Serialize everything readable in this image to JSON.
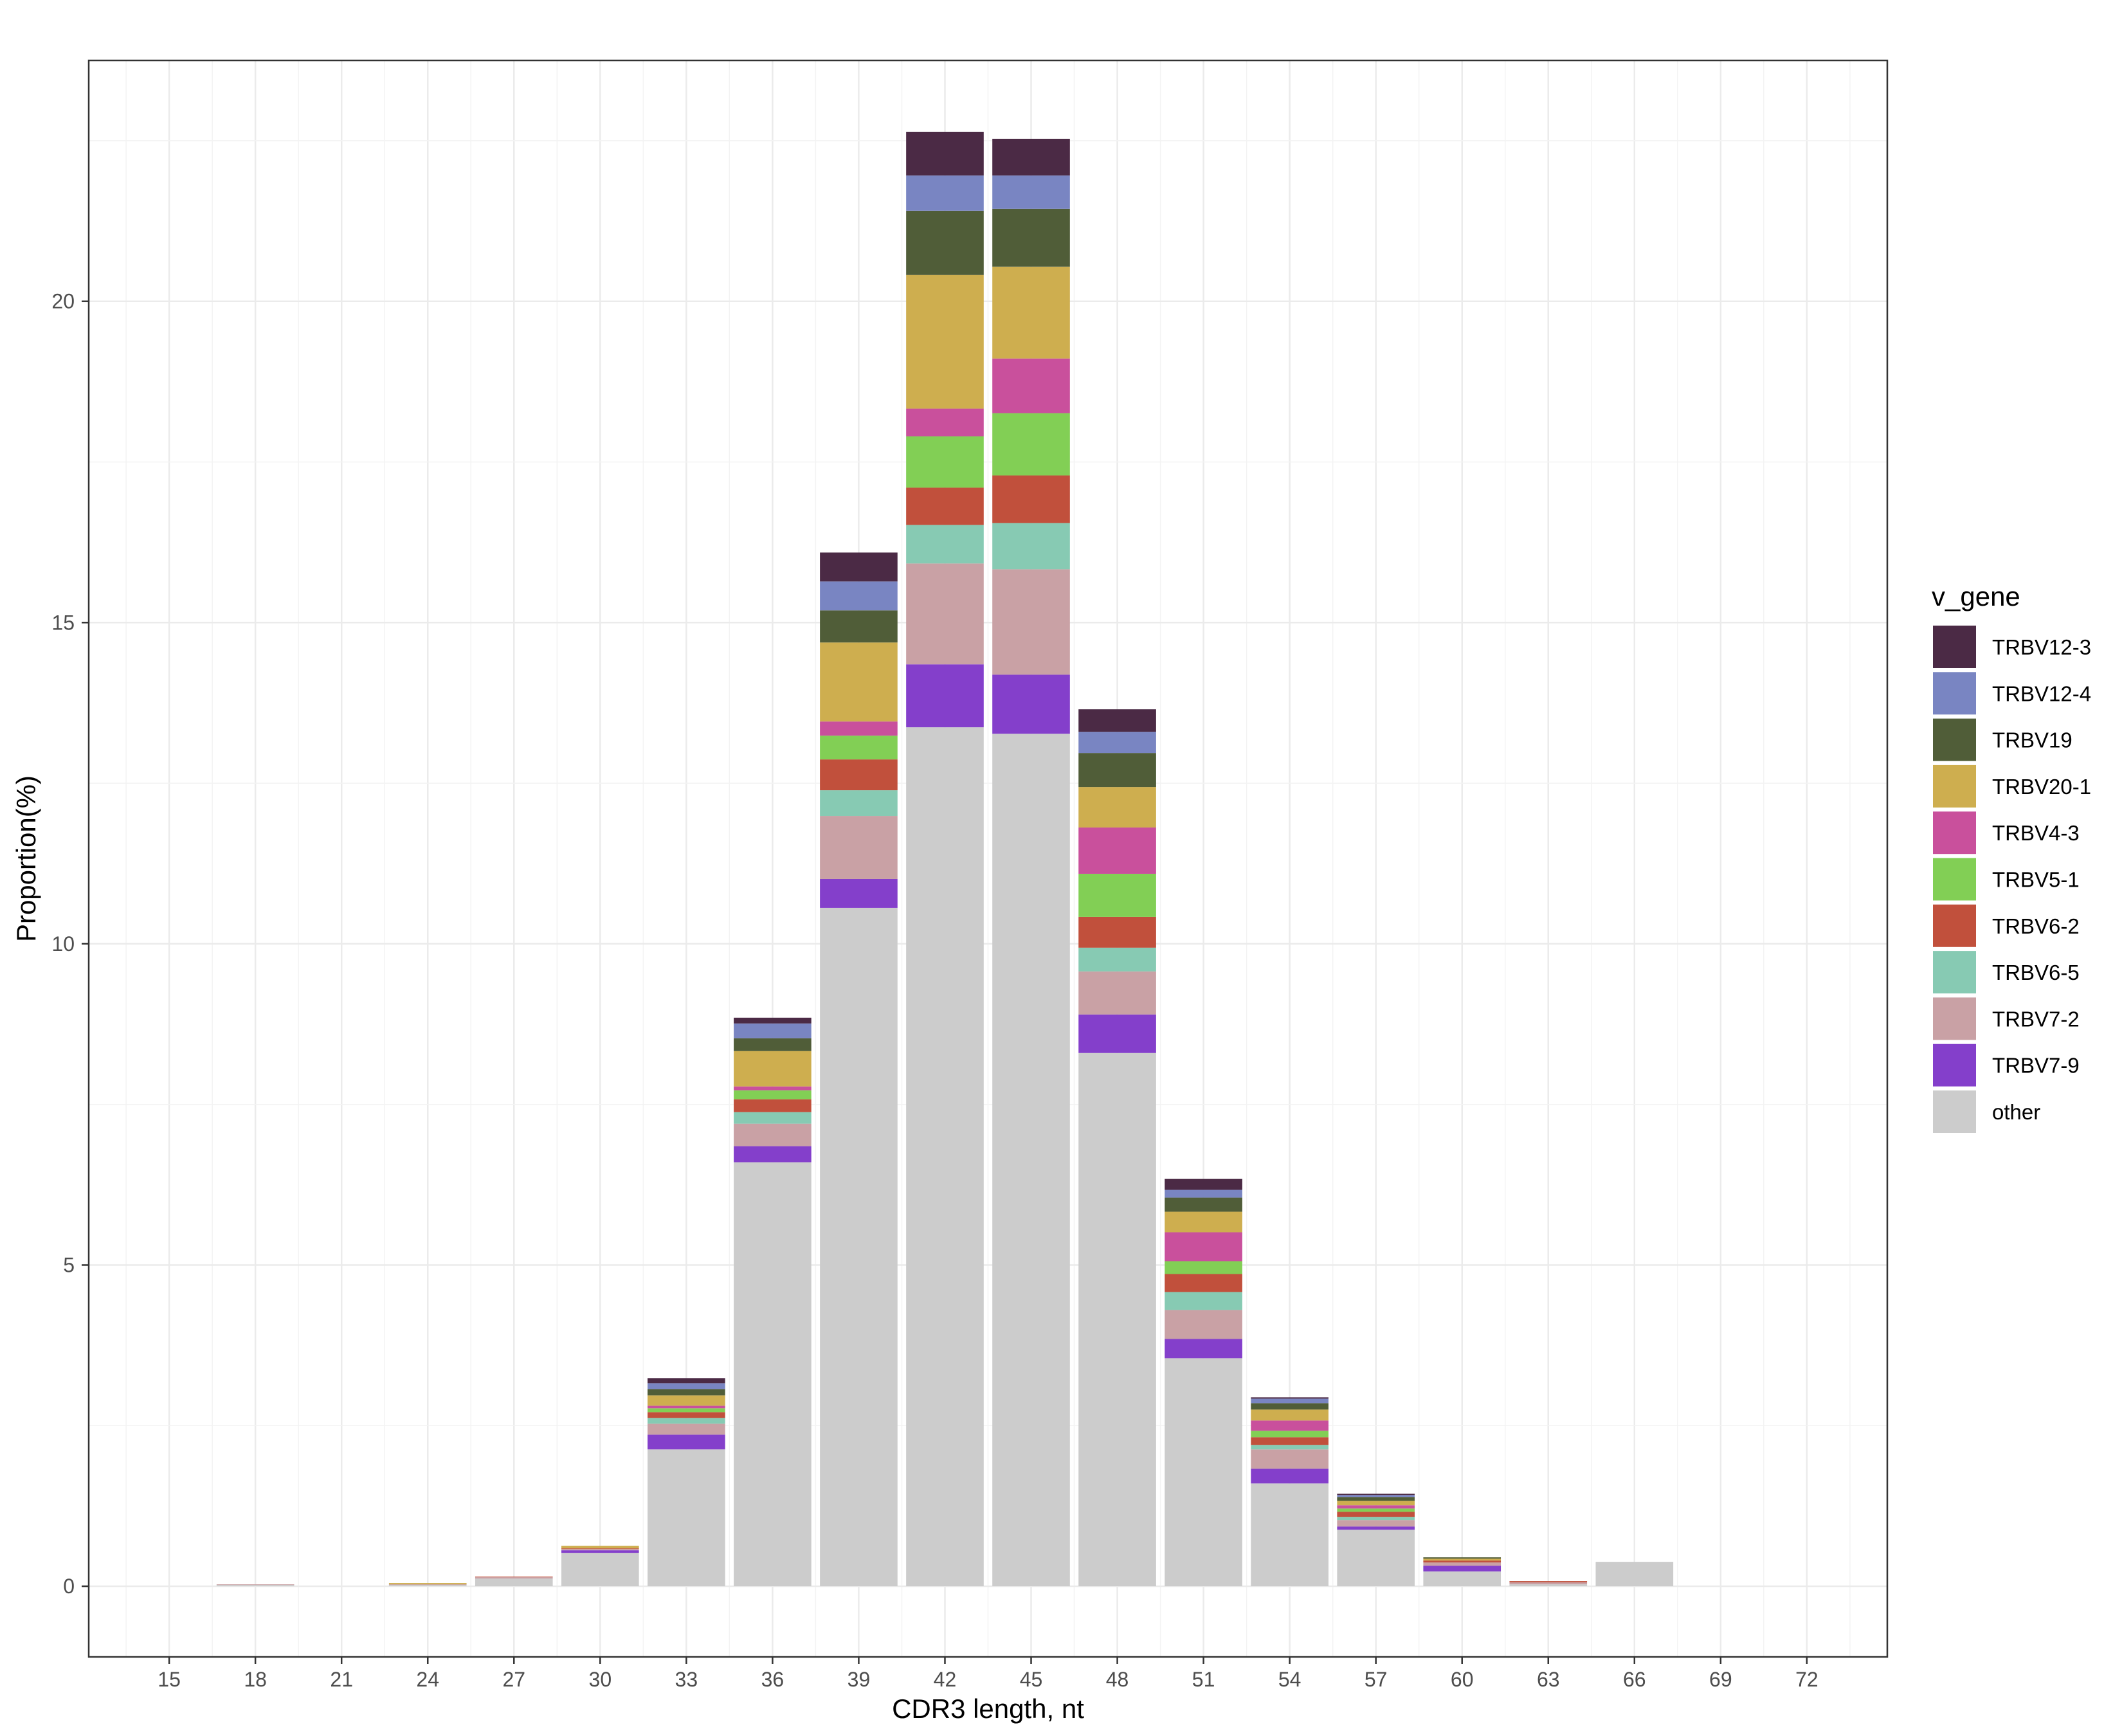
{
  "chart_data": {
    "type": "bar",
    "stacked": true,
    "title": "",
    "xlabel": "CDR3 length, nt",
    "ylabel": "Proportion(%)",
    "ylim": [
      -1.1,
      23.75
    ],
    "y_ticks": [
      0,
      5,
      10,
      15,
      20
    ],
    "x_ticks": [
      15,
      18,
      21,
      24,
      27,
      30,
      33,
      36,
      39,
      42,
      45,
      48,
      51,
      54,
      57,
      60,
      63,
      66,
      69,
      72
    ],
    "xlim": [
      12.2,
      74.8
    ],
    "grid": true,
    "legend_position": "right",
    "legend_title": "v_gene",
    "stack_order": [
      "other",
      "TRBV7-9",
      "TRBV7-2",
      "TRBV6-5",
      "TRBV6-2",
      "TRBV5-1",
      "TRBV4-3",
      "TRBV20-1",
      "TRBV19",
      "TRBV12-4",
      "TRBV12-3"
    ],
    "legend_order": [
      "TRBV12-3",
      "TRBV12-4",
      "TRBV19",
      "TRBV20-1",
      "TRBV4-3",
      "TRBV5-1",
      "TRBV6-2",
      "TRBV6-5",
      "TRBV7-2",
      "TRBV7-9",
      "other"
    ],
    "colors": {
      "TRBV12-3": "#4b2a45",
      "TRBV12-4": "#7985c2",
      "TRBV19": "#505d38",
      "TRBV20-1": "#ceae4f",
      "TRBV4-3": "#c9509c",
      "TRBV5-1": "#82cf55",
      "TRBV6-2": "#c1503c",
      "TRBV6-5": "#87cab3",
      "TRBV7-2": "#c9a1a5",
      "TRBV7-9": "#843fcb",
      "other": "#cccccc"
    },
    "bars": [
      {
        "x": 18,
        "segments": [
          [
            "other",
            0.02
          ],
          [
            "TRBV7-2",
            0.01
          ]
        ]
      },
      {
        "x": 24,
        "segments": [
          [
            "other",
            0.02
          ],
          [
            "TRBV20-1",
            0.02
          ],
          [
            "TRBV7-2",
            0.01
          ]
        ]
      },
      {
        "x": 27,
        "segments": [
          [
            "other",
            0.12
          ],
          [
            "TRBV7-2",
            0.02
          ],
          [
            "TRBV6-2",
            0.01
          ]
        ]
      },
      {
        "x": 30,
        "segments": [
          [
            "other",
            0.52
          ],
          [
            "TRBV7-9",
            0.04
          ],
          [
            "TRBV7-2",
            0.02
          ],
          [
            "TRBV6-2",
            0.01
          ],
          [
            "TRBV20-1",
            0.04
          ]
        ]
      },
      {
        "x": 33,
        "segments": [
          [
            "other",
            2.13
          ],
          [
            "TRBV7-9",
            0.23
          ],
          [
            "TRBV7-2",
            0.17
          ],
          [
            "TRBV6-5",
            0.09
          ],
          [
            "TRBV6-2",
            0.09
          ],
          [
            "TRBV5-1",
            0.06
          ],
          [
            "TRBV4-3",
            0.04
          ],
          [
            "TRBV20-1",
            0.16
          ],
          [
            "TRBV19",
            0.1
          ],
          [
            "TRBV12-4",
            0.09
          ],
          [
            "TRBV12-3",
            0.08
          ]
        ]
      },
      {
        "x": 36,
        "segments": [
          [
            "other",
            6.6
          ],
          [
            "TRBV7-9",
            0.25
          ],
          [
            "TRBV7-2",
            0.35
          ],
          [
            "TRBV6-5",
            0.18
          ],
          [
            "TRBV6-2",
            0.2
          ],
          [
            "TRBV5-1",
            0.14
          ],
          [
            "TRBV4-3",
            0.06
          ],
          [
            "TRBV20-1",
            0.55
          ],
          [
            "TRBV19",
            0.2
          ],
          [
            "TRBV12-4",
            0.23
          ],
          [
            "TRBV12-3",
            0.09
          ]
        ]
      },
      {
        "x": 39,
        "segments": [
          [
            "other",
            10.56
          ],
          [
            "TRBV7-9",
            0.45
          ],
          [
            "TRBV7-2",
            0.98
          ],
          [
            "TRBV6-5",
            0.4
          ],
          [
            "TRBV6-2",
            0.48
          ],
          [
            "TRBV5-1",
            0.37
          ],
          [
            "TRBV4-3",
            0.22
          ],
          [
            "TRBV20-1",
            1.23
          ],
          [
            "TRBV19",
            0.5
          ],
          [
            "TRBV12-4",
            0.45
          ],
          [
            "TRBV12-3",
            0.45
          ]
        ]
      },
      {
        "x": 42,
        "segments": [
          [
            "other",
            13.37
          ],
          [
            "TRBV7-9",
            0.98
          ],
          [
            "TRBV7-2",
            1.57
          ],
          [
            "TRBV6-5",
            0.6
          ],
          [
            "TRBV6-2",
            0.58
          ],
          [
            "TRBV5-1",
            0.8
          ],
          [
            "TRBV4-3",
            0.43
          ],
          [
            "TRBV20-1",
            2.08
          ],
          [
            "TRBV19",
            1.0
          ],
          [
            "TRBV12-4",
            0.55
          ],
          [
            "TRBV12-3",
            0.68
          ]
        ]
      },
      {
        "x": 45,
        "segments": [
          [
            "other",
            13.27
          ],
          [
            "TRBV7-9",
            0.92
          ],
          [
            "TRBV7-2",
            1.64
          ],
          [
            "TRBV6-5",
            0.72
          ],
          [
            "TRBV6-2",
            0.74
          ],
          [
            "TRBV5-1",
            0.97
          ],
          [
            "TRBV4-3",
            0.85
          ],
          [
            "TRBV20-1",
            1.43
          ],
          [
            "TRBV19",
            0.9
          ],
          [
            "TRBV12-4",
            0.52
          ],
          [
            "TRBV12-3",
            0.57
          ]
        ]
      },
      {
        "x": 48,
        "segments": [
          [
            "other",
            8.3
          ],
          [
            "TRBV7-9",
            0.6
          ],
          [
            "TRBV7-2",
            0.67
          ],
          [
            "TRBV6-5",
            0.37
          ],
          [
            "TRBV6-2",
            0.48
          ],
          [
            "TRBV5-1",
            0.67
          ],
          [
            "TRBV4-3",
            0.72
          ],
          [
            "TRBV20-1",
            0.63
          ],
          [
            "TRBV19",
            0.53
          ],
          [
            "TRBV12-4",
            0.33
          ],
          [
            "TRBV12-3",
            0.35
          ]
        ]
      },
      {
        "x": 51,
        "segments": [
          [
            "other",
            3.55
          ],
          [
            "TRBV7-9",
            0.3
          ],
          [
            "TRBV7-2",
            0.45
          ],
          [
            "TRBV6-5",
            0.28
          ],
          [
            "TRBV6-2",
            0.28
          ],
          [
            "TRBV5-1",
            0.2
          ],
          [
            "TRBV4-3",
            0.45
          ],
          [
            "TRBV20-1",
            0.32
          ],
          [
            "TRBV19",
            0.22
          ],
          [
            "TRBV12-4",
            0.12
          ],
          [
            "TRBV12-3",
            0.17
          ]
        ]
      },
      {
        "x": 54,
        "segments": [
          [
            "other",
            1.6
          ],
          [
            "TRBV7-9",
            0.23
          ],
          [
            "TRBV7-2",
            0.3
          ],
          [
            "TRBV6-5",
            0.07
          ],
          [
            "TRBV6-2",
            0.12
          ],
          [
            "TRBV5-1",
            0.1
          ],
          [
            "TRBV4-3",
            0.16
          ],
          [
            "TRBV20-1",
            0.17
          ],
          [
            "TRBV19",
            0.1
          ],
          [
            "TRBV12-4",
            0.07
          ],
          [
            "TRBV12-3",
            0.02
          ]
        ]
      },
      {
        "x": 57,
        "segments": [
          [
            "other",
            0.88
          ],
          [
            "TRBV7-9",
            0.05
          ],
          [
            "TRBV7-2",
            0.1
          ],
          [
            "TRBV6-5",
            0.05
          ],
          [
            "TRBV6-2",
            0.08
          ],
          [
            "TRBV5-1",
            0.05
          ],
          [
            "TRBV4-3",
            0.05
          ],
          [
            "TRBV20-1",
            0.07
          ],
          [
            "TRBV19",
            0.06
          ],
          [
            "TRBV12-4",
            0.03
          ],
          [
            "TRBV12-3",
            0.02
          ]
        ]
      },
      {
        "x": 60,
        "segments": [
          [
            "other",
            0.23
          ],
          [
            "TRBV7-9",
            0.09
          ],
          [
            "TRBV7-2",
            0.05
          ],
          [
            "TRBV6-2",
            0.03
          ],
          [
            "TRBV20-1",
            0.03
          ],
          [
            "TRBV19",
            0.02
          ]
        ]
      },
      {
        "x": 63,
        "segments": [
          [
            "other",
            0.03
          ],
          [
            "TRBV7-2",
            0.03
          ],
          [
            "TRBV6-2",
            0.02
          ]
        ]
      },
      {
        "x": 66,
        "segments": [
          [
            "other",
            0.38
          ]
        ]
      }
    ]
  }
}
